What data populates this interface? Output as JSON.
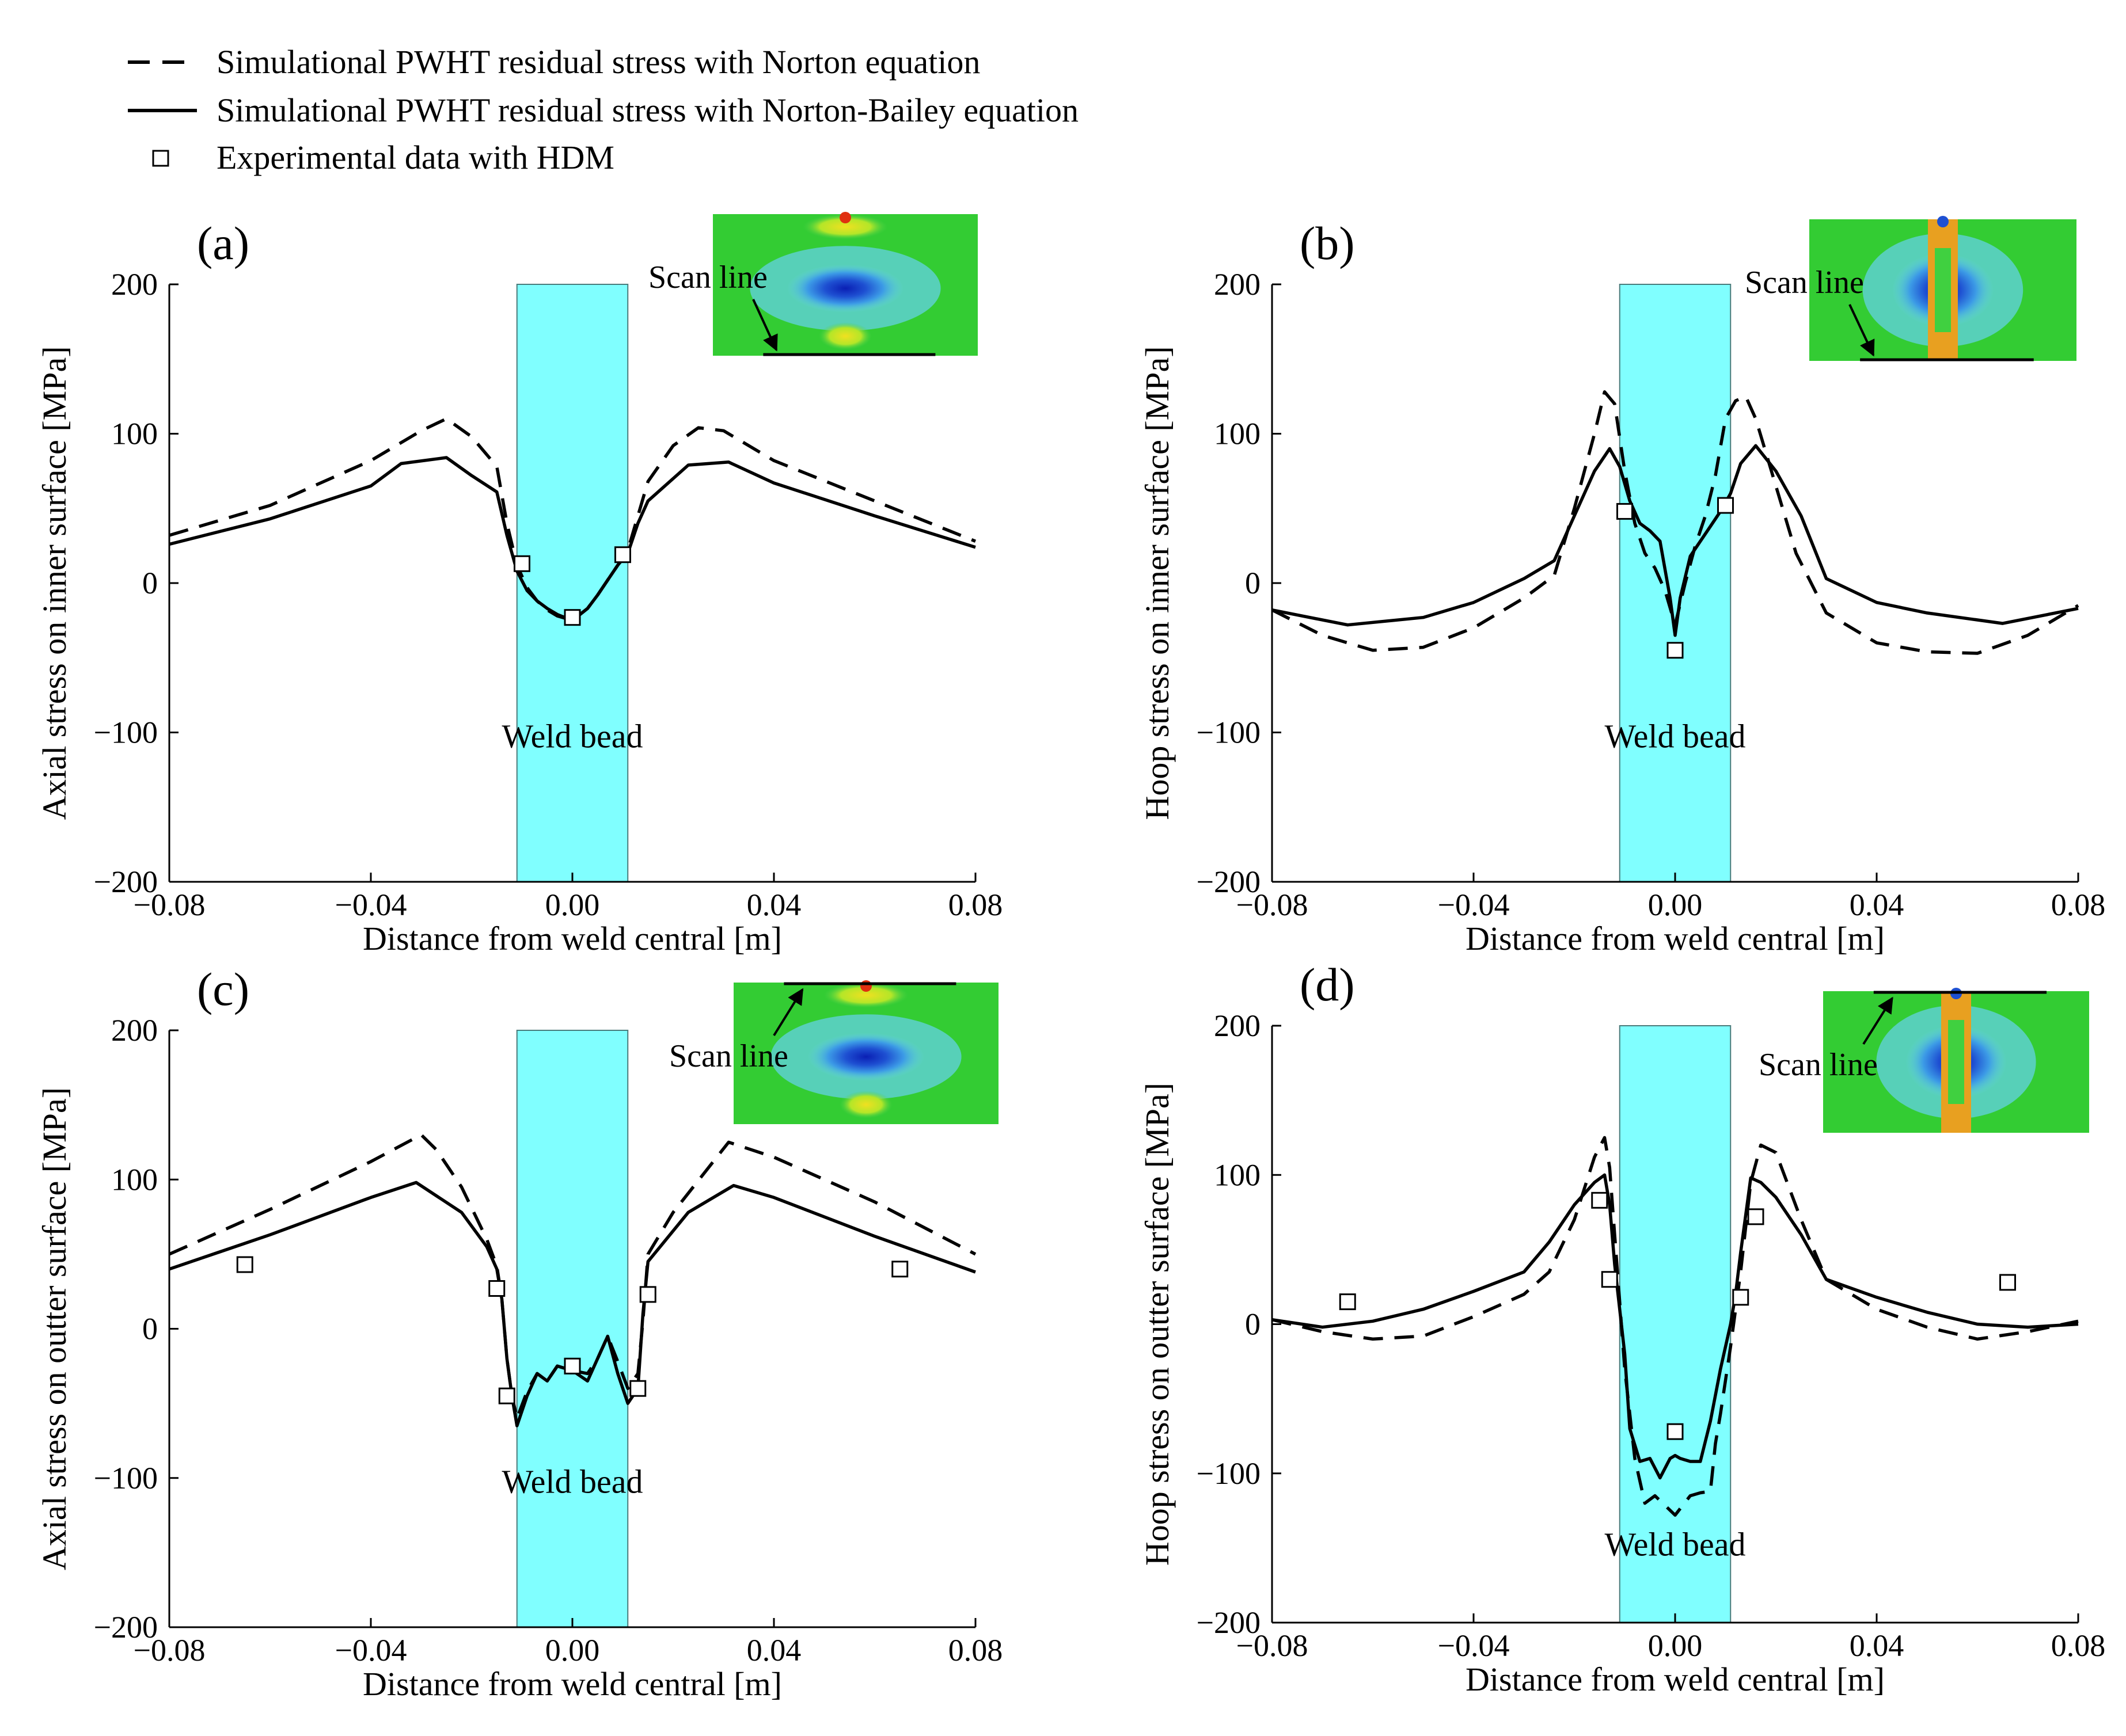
{
  "legend": {
    "items": [
      {
        "label": "Simulational PWHT residual stress with Norton equation",
        "style": "dashed"
      },
      {
        "label": "Simulational PWHT residual stress with Norton-Bailey equation",
        "style": "solid"
      },
      {
        "label": "Experimental data with HDM",
        "style": "square-marker"
      }
    ]
  },
  "colors": {
    "weld_bead_fill": "#80ffff",
    "line": "#000000",
    "contour_green": "#33cc33",
    "contour_blue": "#1e50d2",
    "contour_red": "#e03010"
  },
  "chart_data": [
    {
      "type": "line",
      "panel_label": "(a)",
      "xlabel": "Distance from weld central [m]",
      "ylabel": "Axial stress on inner surface [MPa]",
      "xlim": [
        -0.08,
        0.08
      ],
      "ylim": [
        -200,
        200
      ],
      "xticks": [
        -0.08,
        -0.04,
        0.0,
        0.04,
        0.08
      ],
      "xtick_labels": [
        "−0.08",
        "−0.04",
        "0.00",
        "0.04",
        "0.08"
      ],
      "yticks": [
        200,
        100,
        0,
        -100,
        -200
      ],
      "ytick_labels": [
        "200",
        "100",
        "0",
        "−100",
        "−200"
      ],
      "annotation": "Weld bead",
      "weld_bead": [
        -0.011,
        0.011
      ],
      "inset": {
        "label": "Scan line",
        "variant": "axial",
        "scan_edge": "bottom"
      },
      "series": [
        {
          "name": "Simulational PWHT residual stress with Norton equation",
          "style": "dashed",
          "x": [
            -0.08,
            -0.06,
            -0.04,
            -0.03,
            -0.025,
            -0.02,
            -0.015,
            -0.013,
            -0.011,
            -0.009,
            -0.007,
            -0.005,
            -0.003,
            0.0,
            0.003,
            0.005,
            0.007,
            0.009,
            0.011,
            0.013,
            0.015,
            0.02,
            0.025,
            0.03,
            0.04,
            0.06,
            0.08
          ],
          "y": [
            32,
            52,
            82,
            102,
            110,
            98,
            78,
            40,
            12,
            -3,
            -12,
            -18,
            -22,
            -25,
            -17,
            -8,
            2,
            12,
            22,
            45,
            68,
            92,
            104,
            102,
            82,
            55,
            28
          ]
        },
        {
          "name": "Simulational PWHT residual stress with Norton-Bailey equation",
          "style": "solid",
          "x": [
            -0.08,
            -0.06,
            -0.04,
            -0.034,
            -0.025,
            -0.02,
            -0.015,
            -0.013,
            -0.011,
            -0.009,
            -0.007,
            -0.005,
            -0.003,
            0.0,
            0.003,
            0.005,
            0.007,
            0.009,
            0.011,
            0.013,
            0.015,
            0.023,
            0.031,
            0.04,
            0.06,
            0.08
          ],
          "y": [
            26,
            43,
            65,
            80,
            84,
            72,
            61,
            32,
            8,
            -5,
            -12,
            -17,
            -21,
            -25,
            -17,
            -8,
            2,
            12,
            20,
            40,
            55,
            79,
            81,
            67,
            45,
            24
          ]
        },
        {
          "name": "Experimental data with HDM",
          "style": "marker",
          "x": [
            -0.01,
            0.0,
            0.01
          ],
          "y": [
            13,
            -23,
            19
          ]
        }
      ]
    },
    {
      "type": "line",
      "panel_label": "(b)",
      "xlabel": "Distance from weld central [m]",
      "ylabel": "Hoop stress on inner surface [MPa]",
      "xlim": [
        -0.08,
        0.08
      ],
      "ylim": [
        -200,
        200
      ],
      "xticks": [
        -0.08,
        -0.04,
        0.0,
        0.04,
        0.08
      ],
      "xtick_labels": [
        "−0.08",
        "−0.04",
        "0.00",
        "0.04",
        "0.08"
      ],
      "yticks": [
        200,
        100,
        0,
        -100,
        -200
      ],
      "ytick_labels": [
        "200",
        "100",
        "0",
        "−100",
        "−200"
      ],
      "annotation": "Weld bead",
      "weld_bead": [
        -0.011,
        0.011
      ],
      "inset": {
        "label": "Scan line",
        "variant": "hoop",
        "scan_edge": "bottom"
      },
      "series": [
        {
          "name": "Simulational PWHT residual stress with Norton equation",
          "style": "dashed",
          "x": [
            -0.08,
            -0.07,
            -0.06,
            -0.05,
            -0.04,
            -0.03,
            -0.024,
            -0.02,
            -0.016,
            -0.014,
            -0.012,
            -0.01,
            -0.008,
            -0.006,
            -0.004,
            -0.002,
            0.0,
            0.002,
            0.004,
            0.006,
            0.008,
            0.01,
            0.012,
            0.014,
            0.016,
            0.02,
            0.024,
            0.03,
            0.04,
            0.05,
            0.06,
            0.07,
            0.08
          ],
          "y": [
            -18,
            -35,
            -45,
            -43,
            -30,
            -10,
            5,
            50,
            100,
            128,
            120,
            75,
            40,
            20,
            10,
            -5,
            -28,
            0,
            25,
            45,
            72,
            110,
            122,
            125,
            110,
            65,
            20,
            -20,
            -40,
            -46,
            -47,
            -35,
            -15
          ]
        },
        {
          "name": "Simulational PWHT residual stress with Norton-Bailey equation",
          "style": "solid",
          "x": [
            -0.08,
            -0.065,
            -0.05,
            -0.04,
            -0.03,
            -0.024,
            -0.02,
            -0.016,
            -0.013,
            -0.011,
            -0.009,
            -0.007,
            -0.005,
            -0.003,
            -0.001,
            0.0,
            0.001,
            0.003,
            0.005,
            0.007,
            0.009,
            0.011,
            0.013,
            0.016,
            0.02,
            0.025,
            0.03,
            0.04,
            0.05,
            0.065,
            0.08
          ],
          "y": [
            -18,
            -28,
            -23,
            -13,
            3,
            15,
            45,
            75,
            90,
            78,
            55,
            40,
            35,
            28,
            -10,
            -35,
            -10,
            18,
            28,
            38,
            48,
            60,
            80,
            92,
            75,
            45,
            3,
            -13,
            -20,
            -27,
            -17
          ]
        },
        {
          "name": "Experimental data with HDM",
          "style": "marker",
          "x": [
            -0.01,
            0.0,
            0.01
          ],
          "y": [
            48,
            -45,
            52
          ]
        }
      ]
    },
    {
      "type": "line",
      "panel_label": "(c)",
      "xlabel": "Distance from weld central [m]",
      "ylabel": "Axial stress on outter surface [MPa]",
      "xlim": [
        -0.08,
        0.08
      ],
      "ylim": [
        -200,
        200
      ],
      "xticks": [
        -0.08,
        -0.04,
        0.0,
        0.04,
        0.08
      ],
      "xtick_labels": [
        "−0.08",
        "−0.04",
        "0.00",
        "0.04",
        "0.08"
      ],
      "yticks": [
        200,
        100,
        0,
        -100,
        -200
      ],
      "ytick_labels": [
        "200",
        "100",
        "0",
        "−100",
        "−200"
      ],
      "annotation": "Weld bead",
      "weld_bead": [
        -0.011,
        0.011
      ],
      "inset": {
        "label": "Scan line",
        "variant": "axial",
        "scan_edge": "top"
      },
      "series": [
        {
          "name": "Simulational PWHT residual stress with Norton equation",
          "style": "dashed",
          "x": [
            -0.08,
            -0.06,
            -0.04,
            -0.03,
            -0.027,
            -0.022,
            -0.017,
            -0.015,
            -0.014,
            -0.013,
            -0.012,
            -0.011,
            -0.009,
            -0.007,
            -0.005,
            -0.003,
            0.0,
            0.003,
            0.005,
            0.007,
            0.009,
            0.011,
            0.013,
            0.014,
            0.015,
            0.02,
            0.031,
            0.04,
            0.06,
            0.08
          ],
          "y": [
            50,
            80,
            112,
            130,
            120,
            95,
            60,
            42,
            20,
            -20,
            -45,
            -60,
            -42,
            -30,
            -35,
            -25,
            -28,
            -30,
            -20,
            -5,
            -22,
            -40,
            -30,
            5,
            50,
            78,
            125,
            115,
            85,
            50
          ]
        },
        {
          "name": "Simulational PWHT residual stress with Norton-Bailey equation",
          "style": "solid",
          "x": [
            -0.08,
            -0.06,
            -0.04,
            -0.031,
            -0.022,
            -0.017,
            -0.015,
            -0.014,
            -0.013,
            -0.012,
            -0.011,
            -0.009,
            -0.007,
            -0.005,
            -0.003,
            0.0,
            0.003,
            0.005,
            0.007,
            0.009,
            0.011,
            0.013,
            0.014,
            0.015,
            0.023,
            0.032,
            0.04,
            0.06,
            0.08
          ],
          "y": [
            40,
            63,
            88,
            98,
            78,
            55,
            40,
            20,
            -20,
            -45,
            -65,
            -45,
            -30,
            -35,
            -25,
            -28,
            -35,
            -20,
            -5,
            -30,
            -50,
            -40,
            10,
            45,
            78,
            96,
            88,
            62,
            38
          ]
        },
        {
          "name": "Experimental data with HDM",
          "style": "marker",
          "x": [
            -0.065,
            -0.015,
            -0.013,
            0.0,
            0.013,
            0.015,
            0.065
          ],
          "y": [
            43,
            27,
            -45,
            -25,
            -40,
            23,
            40
          ]
        }
      ]
    },
    {
      "type": "line",
      "panel_label": "(d)",
      "xlabel": "Distance from weld central [m]",
      "ylabel": "Hoop stress on outter surface [MPa]",
      "xlim": [
        -0.08,
        0.08
      ],
      "ylim": [
        -200,
        200
      ],
      "xticks": [
        -0.08,
        -0.04,
        0.0,
        0.04,
        0.08
      ],
      "xtick_labels": [
        "−0.08",
        "−0.04",
        "0.00",
        "0.04",
        "0.08"
      ],
      "yticks": [
        200,
        100,
        0,
        -100,
        -200
      ],
      "ytick_labels": [
        "200",
        "100",
        "0",
        "−100",
        "−200"
      ],
      "annotation": "Weld bead",
      "weld_bead": [
        -0.011,
        0.011
      ],
      "inset": {
        "label": "Scan line",
        "variant": "hoop",
        "scan_edge": "top"
      },
      "series": [
        {
          "name": "Simulational PWHT residual stress with Norton equation",
          "style": "dashed",
          "x": [
            -0.08,
            -0.07,
            -0.06,
            -0.05,
            -0.04,
            -0.03,
            -0.025,
            -0.02,
            -0.016,
            -0.014,
            -0.013,
            -0.012,
            -0.01,
            -0.008,
            -0.006,
            -0.004,
            0.0,
            0.003,
            0.005,
            0.007,
            0.008,
            0.009,
            0.011,
            0.013,
            0.015,
            0.017,
            0.02,
            0.025,
            0.03,
            0.04,
            0.05,
            0.06,
            0.07,
            0.08
          ],
          "y": [
            3,
            -5,
            -10,
            -8,
            5,
            20,
            35,
            70,
            112,
            125,
            105,
            60,
            -30,
            -90,
            -120,
            -115,
            -128,
            -115,
            -113,
            -112,
            -80,
            -60,
            -15,
            35,
            95,
            120,
            115,
            70,
            30,
            10,
            -2,
            -10,
            -5,
            2
          ]
        },
        {
          "name": "Simulational PWHT residual stress with Norton-Bailey equation",
          "style": "solid",
          "x": [
            -0.08,
            -0.07,
            -0.06,
            -0.05,
            -0.04,
            -0.03,
            -0.025,
            -0.02,
            -0.016,
            -0.014,
            -0.013,
            -0.012,
            -0.01,
            -0.009,
            -0.007,
            -0.005,
            -0.003,
            -0.001,
            0.0,
            0.001,
            0.003,
            0.005,
            0.007,
            0.009,
            0.011,
            0.012,
            0.013,
            0.015,
            0.017,
            0.02,
            0.025,
            0.03,
            0.04,
            0.05,
            0.06,
            0.07,
            0.08
          ],
          "y": [
            3,
            -2,
            2,
            10,
            22,
            35,
            55,
            80,
            95,
            100,
            80,
            40,
            -20,
            -70,
            -92,
            -90,
            -103,
            -90,
            -88,
            -90,
            -92,
            -92,
            -65,
            -30,
            0,
            20,
            48,
            98,
            95,
            85,
            60,
            30,
            18,
            8,
            0,
            -2,
            0
          ]
        },
        {
          "name": "Experimental data with HDM",
          "style": "marker",
          "x": [
            -0.065,
            -0.015,
            -0.013,
            0.0,
            0.013,
            0.016,
            0.066
          ],
          "y": [
            15,
            83,
            30,
            -72,
            18,
            72,
            28
          ]
        }
      ]
    }
  ]
}
